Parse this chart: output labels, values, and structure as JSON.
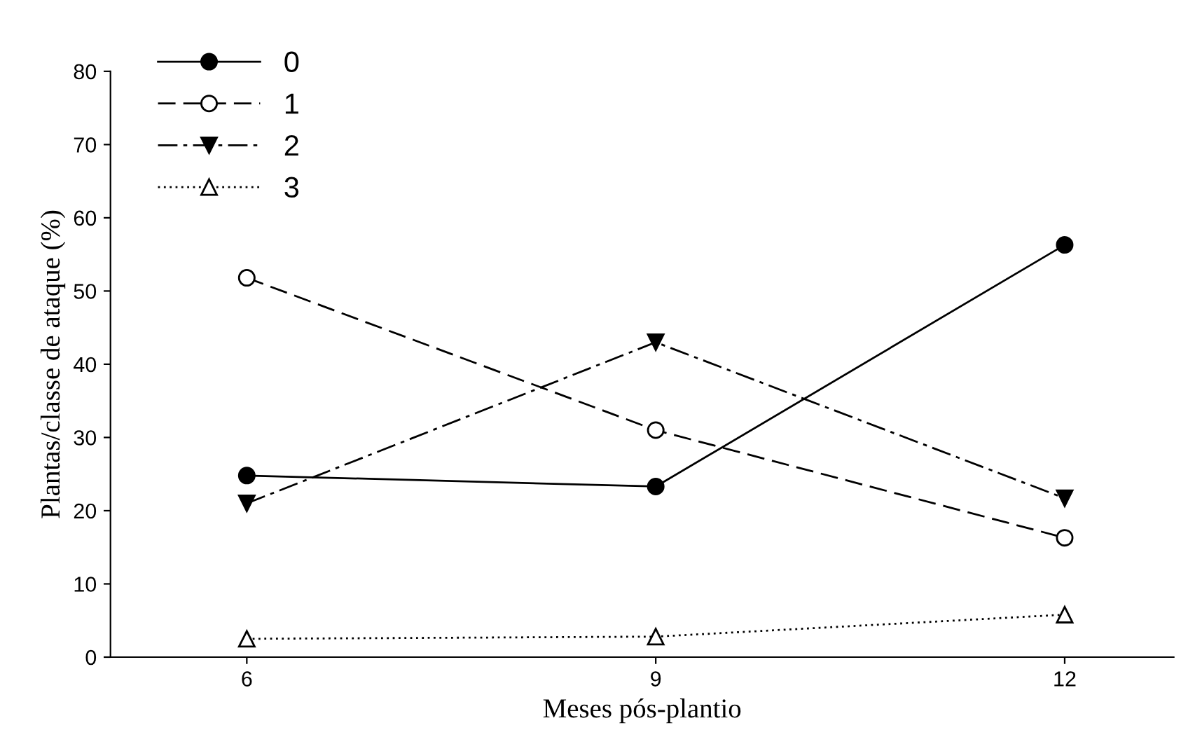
{
  "chart_data": {
    "type": "line",
    "xlabel": "Meses pós-plantio",
    "ylabel": "Plantas/classe de ataque (%)",
    "x": [
      6,
      9,
      12
    ],
    "xlim": [
      5,
      12.8
    ],
    "xticks": [
      6,
      9,
      12
    ],
    "ylim": [
      0,
      80
    ],
    "yticks": [
      0,
      10,
      20,
      30,
      40,
      50,
      60,
      70,
      80
    ],
    "grid": false,
    "legend": "top left",
    "series": [
      {
        "name": "0",
        "color": "#000000",
        "values": [
          24.8,
          23.3,
          56.3
        ],
        "marker": "circle",
        "line_style": "solid"
      },
      {
        "name": "1",
        "color": "#000000",
        "values": [
          51.8,
          31.0,
          16.3
        ],
        "marker": "circle_open",
        "line_style": "dashed"
      },
      {
        "name": "2",
        "color": "#000000",
        "values": [
          21.0,
          43.0,
          21.7
        ],
        "marker": "triangle_down",
        "line_style": "dashdot"
      },
      {
        "name": "3",
        "color": "#000000",
        "values": [
          2.5,
          2.8,
          5.8
        ],
        "marker": "triangle_open",
        "line_style": "dotted"
      }
    ]
  }
}
